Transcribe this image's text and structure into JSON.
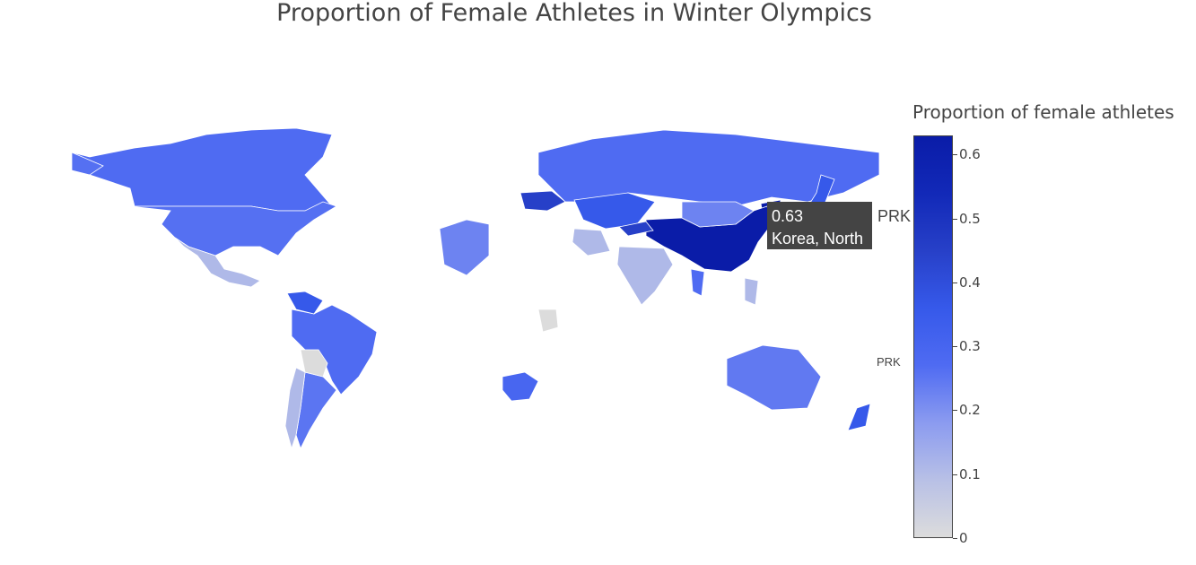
{
  "title": "Proportion of Female Athletes in Winter Olympics",
  "colorbar": {
    "title": "Proportion of female athletes",
    "ticks": [
      "0",
      "0.1",
      "0.2",
      "0.3",
      "0.4",
      "0.5",
      "0.6"
    ],
    "min": 0,
    "max": 0.63,
    "colors": [
      "#dcdcdc",
      "#b8c0e6",
      "#8b9bf0",
      "#4f6bf2",
      "#3659ea",
      "#2740c8",
      "#1229b8",
      "#0a1ca8"
    ]
  },
  "hover": {
    "value": "0.63",
    "country": "Korea, North",
    "code": "PRK"
  },
  "map_labels": {
    "edge_code": "PRK"
  },
  "chart_data": {
    "type": "choropleth",
    "title": "Proportion of Female Athletes in Winter Olympics",
    "colorbar_title": "Proportion of female athletes",
    "colorbar_range": [
      0,
      0.63
    ],
    "colorscale_stops": [
      {
        "value": 0,
        "color": "#dcdcdc"
      },
      {
        "value": 0.1,
        "color": "#b8c0e6"
      },
      {
        "value": 0.2,
        "color": "#8b9bf0"
      },
      {
        "value": 0.3,
        "color": "#4f6bf2"
      },
      {
        "value": 0.4,
        "color": "#3659ea"
      },
      {
        "value": 0.5,
        "color": "#2740c8"
      },
      {
        "value": 0.6,
        "color": "#0a1ca8"
      }
    ],
    "regions": [
      {
        "code": "PRK",
        "name": "Korea, North",
        "value": 0.63
      },
      {
        "code": "CHN",
        "value": 0.62
      },
      {
        "code": "CAN",
        "value": 0.3
      },
      {
        "code": "USA",
        "value": 0.29
      },
      {
        "code": "RUS",
        "value": 0.3
      },
      {
        "code": "KAZ",
        "value": 0.4
      },
      {
        "code": "MNG",
        "value": 0.25
      },
      {
        "code": "BRA",
        "value": 0.3
      },
      {
        "code": "ARG",
        "value": 0.28
      },
      {
        "code": "CHL",
        "value": 0.12
      },
      {
        "code": "BOL",
        "value": 0.0
      },
      {
        "code": "MEX",
        "value": 0.12
      },
      {
        "code": "AUS",
        "value": 0.27
      },
      {
        "code": "NZL",
        "value": 0.4
      },
      {
        "code": "ZAF",
        "value": 0.33
      },
      {
        "code": "DZA",
        "value": 0.25
      },
      {
        "code": "IND",
        "value": 0.12
      },
      {
        "code": "IRN",
        "value": 0.12
      },
      {
        "code": "KEN",
        "value": 0.0
      },
      {
        "code": "THA",
        "value": 0.3
      },
      {
        "code": "PHL",
        "value": 0.12
      },
      {
        "code": "VEN",
        "value": 0.4
      },
      {
        "code": "JPN",
        "value": 0.4
      },
      {
        "code": "UKR",
        "value": 0.5
      },
      {
        "code": "KGZ",
        "value": 0.5
      }
    ]
  }
}
